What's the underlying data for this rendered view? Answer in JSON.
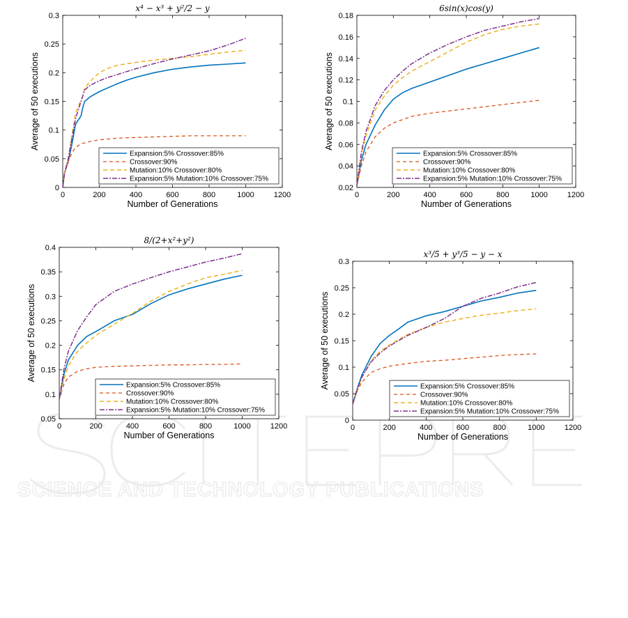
{
  "watermark": {
    "logo": "SCITEPRESS",
    "tagline": "SCIENCE AND TECHNOLOGY PUBLICATIONS"
  },
  "styles": [
    {
      "color": "#0072bd",
      "dash": "",
      "width": 1.6
    },
    {
      "color": "#d95319",
      "dash": "5,4",
      "width": 1.3
    },
    {
      "color": "#edb120",
      "dash": "6,4",
      "width": 1.5
    },
    {
      "color": "#7e2f8e",
      "dash": "7,2,2,2",
      "width": 1.5
    }
  ],
  "chart_data": [
    {
      "type": "line",
      "title": "x⁴ − x³ + y²/2 − y",
      "xlabel": "Number of Generations",
      "ylabel": "Average of 50 executions",
      "xlim": [
        0,
        1200
      ],
      "ylim": [
        0,
        0.3
      ],
      "xticks": [
        0,
        200,
        400,
        600,
        800,
        1000,
        1200
      ],
      "yticks": [
        0,
        0.05,
        0.1,
        0.15,
        0.2,
        0.25,
        0.3
      ],
      "yticklabels": [
        "0",
        "0.05",
        "0.1",
        "0.15",
        "0.2",
        "0.25",
        "0.3"
      ],
      "legend": "inside-lower-right",
      "series": [
        {
          "name": "Expansion:5% Crossover:85%",
          "x": [
            0,
            10,
            30,
            50,
            70,
            80,
            100,
            110,
            120,
            150,
            200,
            250,
            300,
            350,
            400,
            500,
            600,
            700,
            800,
            900,
            1000
          ],
          "y": [
            0,
            0.025,
            0.045,
            0.075,
            0.11,
            0.115,
            0.125,
            0.14,
            0.15,
            0.158,
            0.167,
            0.174,
            0.181,
            0.187,
            0.192,
            0.2,
            0.206,
            0.21,
            0.213,
            0.215,
            0.217
          ]
        },
        {
          "name": "Crossover:90%",
          "x": [
            0,
            10,
            30,
            50,
            70,
            100,
            150,
            200,
            300,
            400,
            500,
            600,
            700,
            800,
            900,
            1000
          ],
          "y": [
            0,
            0.025,
            0.045,
            0.06,
            0.07,
            0.076,
            0.08,
            0.083,
            0.086,
            0.087,
            0.088,
            0.089,
            0.09,
            0.09,
            0.09,
            0.09
          ]
        },
        {
          "name": "Mutation:10% Crossover:80%",
          "x": [
            0,
            10,
            30,
            50,
            70,
            90,
            110,
            120,
            150,
            200,
            250,
            300,
            400,
            500,
            600,
            700,
            800,
            900,
            1000
          ],
          "y": [
            0,
            0.025,
            0.05,
            0.09,
            0.13,
            0.145,
            0.16,
            0.173,
            0.185,
            0.2,
            0.208,
            0.213,
            0.218,
            0.222,
            0.225,
            0.228,
            0.232,
            0.236,
            0.239
          ]
        },
        {
          "name": "Expansion:5% Mutation:10% Crossover:75%",
          "x": [
            0,
            10,
            30,
            50,
            70,
            90,
            110,
            120,
            150,
            200,
            250,
            300,
            400,
            500,
            600,
            700,
            800,
            900,
            1000
          ],
          "y": [
            0,
            0.025,
            0.05,
            0.085,
            0.12,
            0.14,
            0.16,
            0.17,
            0.178,
            0.186,
            0.192,
            0.197,
            0.207,
            0.216,
            0.224,
            0.231,
            0.238,
            0.248,
            0.26
          ]
        }
      ]
    },
    {
      "type": "line",
      "title": "6sin(x)cos(y)",
      "xlabel": "Number of Generations",
      "ylabel": "Average of 50 executions",
      "xlim": [
        0,
        1200
      ],
      "ylim": [
        0.02,
        0.18
      ],
      "xticks": [
        0,
        200,
        400,
        600,
        800,
        1000,
        1200
      ],
      "yticks": [
        0.02,
        0.04,
        0.06,
        0.08,
        0.1,
        0.12,
        0.14,
        0.16,
        0.18
      ],
      "yticklabels": [
        "0.02",
        "0.04",
        "0.06",
        "0.08",
        "0.1",
        "0.12",
        "0.14",
        "0.16",
        "0.18"
      ],
      "legend": "inside-lower-right",
      "series": [
        {
          "name": "Expansion:5% Crossover:85%",
          "x": [
            0,
            25,
            50,
            100,
            150,
            200,
            250,
            300,
            400,
            500,
            600,
            700,
            800,
            900,
            1000
          ],
          "y": [
            0.022,
            0.045,
            0.06,
            0.078,
            0.092,
            0.102,
            0.108,
            0.112,
            0.118,
            0.124,
            0.13,
            0.135,
            0.14,
            0.145,
            0.15
          ]
        },
        {
          "name": "Crossover:90%",
          "x": [
            0,
            25,
            50,
            100,
            150,
            200,
            300,
            400,
            500,
            600,
            700,
            800,
            900,
            1000
          ],
          "y": [
            0.022,
            0.04,
            0.053,
            0.067,
            0.075,
            0.08,
            0.086,
            0.089,
            0.091,
            0.093,
            0.095,
            0.097,
            0.099,
            0.101
          ]
        },
        {
          "name": "Mutation:10% Crossover:80%",
          "x": [
            0,
            25,
            50,
            100,
            150,
            200,
            250,
            300,
            400,
            500,
            600,
            700,
            800,
            900,
            1000
          ],
          "y": [
            0.022,
            0.05,
            0.068,
            0.092,
            0.105,
            0.115,
            0.122,
            0.128,
            0.137,
            0.146,
            0.155,
            0.162,
            0.167,
            0.17,
            0.172
          ]
        },
        {
          "name": "Expansion:5% Mutation:10% Crossover:75%",
          "x": [
            0,
            25,
            50,
            100,
            150,
            200,
            250,
            300,
            400,
            500,
            600,
            700,
            800,
            900,
            1000
          ],
          "y": [
            0.022,
            0.053,
            0.072,
            0.096,
            0.11,
            0.12,
            0.128,
            0.135,
            0.145,
            0.153,
            0.16,
            0.166,
            0.17,
            0.174,
            0.177
          ]
        }
      ]
    },
    {
      "type": "line",
      "title": "8/(2+x²+y²)",
      "xlabel": "Number of Generations",
      "ylabel": "Average of 50 executions",
      "xlim": [
        0,
        1200
      ],
      "ylim": [
        0.05,
        0.4
      ],
      "xticks": [
        0,
        200,
        400,
        600,
        800,
        1000,
        1200
      ],
      "yticks": [
        0.05,
        0.1,
        0.15,
        0.2,
        0.25,
        0.3,
        0.35,
        0.4
      ],
      "yticklabels": [
        "0.05",
        "0.1",
        "0.15",
        "0.2",
        "0.25",
        "0.3",
        "0.35",
        "0.4"
      ],
      "legend": "inside-lower-right",
      "series": [
        {
          "name": "Expansion:5% Crossover:85%",
          "x": [
            0,
            25,
            50,
            100,
            150,
            200,
            300,
            400,
            500,
            600,
            700,
            800,
            900,
            1000
          ],
          "y": [
            0.09,
            0.14,
            0.17,
            0.2,
            0.218,
            0.228,
            0.25,
            0.263,
            0.285,
            0.303,
            0.315,
            0.325,
            0.335,
            0.343
          ]
        },
        {
          "name": "Crossover:90%",
          "x": [
            0,
            25,
            50,
            100,
            150,
            200,
            300,
            400,
            500,
            600,
            700,
            800,
            900,
            1000
          ],
          "y": [
            0.09,
            0.12,
            0.135,
            0.147,
            0.152,
            0.155,
            0.157,
            0.158,
            0.159,
            0.16,
            0.16,
            0.161,
            0.161,
            0.162
          ]
        },
        {
          "name": "Mutation:10% Crossover:80%",
          "x": [
            0,
            25,
            50,
            100,
            150,
            200,
            300,
            400,
            500,
            600,
            700,
            800,
            900,
            1000
          ],
          "y": [
            0.09,
            0.13,
            0.158,
            0.188,
            0.205,
            0.22,
            0.243,
            0.265,
            0.29,
            0.31,
            0.325,
            0.338,
            0.345,
            0.353
          ]
        },
        {
          "name": "Expansion:5% Mutation:10% Crossover:75%",
          "x": [
            0,
            25,
            50,
            100,
            150,
            200,
            300,
            400,
            500,
            600,
            700,
            800,
            900,
            1000
          ],
          "y": [
            0.09,
            0.15,
            0.188,
            0.23,
            0.258,
            0.283,
            0.31,
            0.325,
            0.338,
            0.35,
            0.36,
            0.37,
            0.378,
            0.387
          ]
        }
      ]
    },
    {
      "type": "line",
      "title": "x³/5 + y³/5 − y − x",
      "xlabel": "Number of Generations",
      "ylabel": "Average of 50 executions",
      "xlim": [
        0,
        1200
      ],
      "ylim": [
        0,
        0.3
      ],
      "xticks": [
        0,
        200,
        400,
        600,
        800,
        1000,
        1200
      ],
      "yticks": [
        0,
        0.05,
        0.1,
        0.15,
        0.2,
        0.25,
        0.3
      ],
      "yticklabels": [
        "0",
        "0.05",
        "0.1",
        "0.15",
        "0.2",
        "0.25",
        "0.3"
      ],
      "legend": "inside-lower-right",
      "series": [
        {
          "name": "Expansion:5% Crossover:85%",
          "x": [
            0,
            25,
            50,
            100,
            150,
            200,
            250,
            300,
            400,
            500,
            600,
            700,
            800,
            900,
            1000
          ],
          "y": [
            0.03,
            0.06,
            0.085,
            0.12,
            0.145,
            0.16,
            0.172,
            0.185,
            0.197,
            0.205,
            0.215,
            0.225,
            0.232,
            0.24,
            0.245
          ]
        },
        {
          "name": "Crossover:90%",
          "x": [
            0,
            25,
            50,
            100,
            150,
            200,
            300,
            400,
            500,
            600,
            700,
            800,
            900,
            1000
          ],
          "y": [
            0.03,
            0.055,
            0.072,
            0.09,
            0.097,
            0.102,
            0.107,
            0.111,
            0.113,
            0.116,
            0.119,
            0.122,
            0.124,
            0.125
          ]
        },
        {
          "name": "Mutation:10% Crossover:80%",
          "x": [
            0,
            25,
            50,
            100,
            150,
            200,
            300,
            400,
            500,
            600,
            700,
            800,
            900,
            1000
          ],
          "y": [
            0.03,
            0.058,
            0.08,
            0.112,
            0.13,
            0.142,
            0.162,
            0.175,
            0.185,
            0.192,
            0.198,
            0.202,
            0.207,
            0.21
          ]
        },
        {
          "name": "Expansion:5% Mutation:10% Crossover:75%",
          "x": [
            0,
            25,
            50,
            100,
            150,
            200,
            300,
            400,
            500,
            600,
            700,
            800,
            900,
            1000
          ],
          "y": [
            0.03,
            0.058,
            0.082,
            0.11,
            0.127,
            0.14,
            0.16,
            0.175,
            0.192,
            0.215,
            0.23,
            0.24,
            0.252,
            0.26
          ]
        }
      ]
    }
  ]
}
